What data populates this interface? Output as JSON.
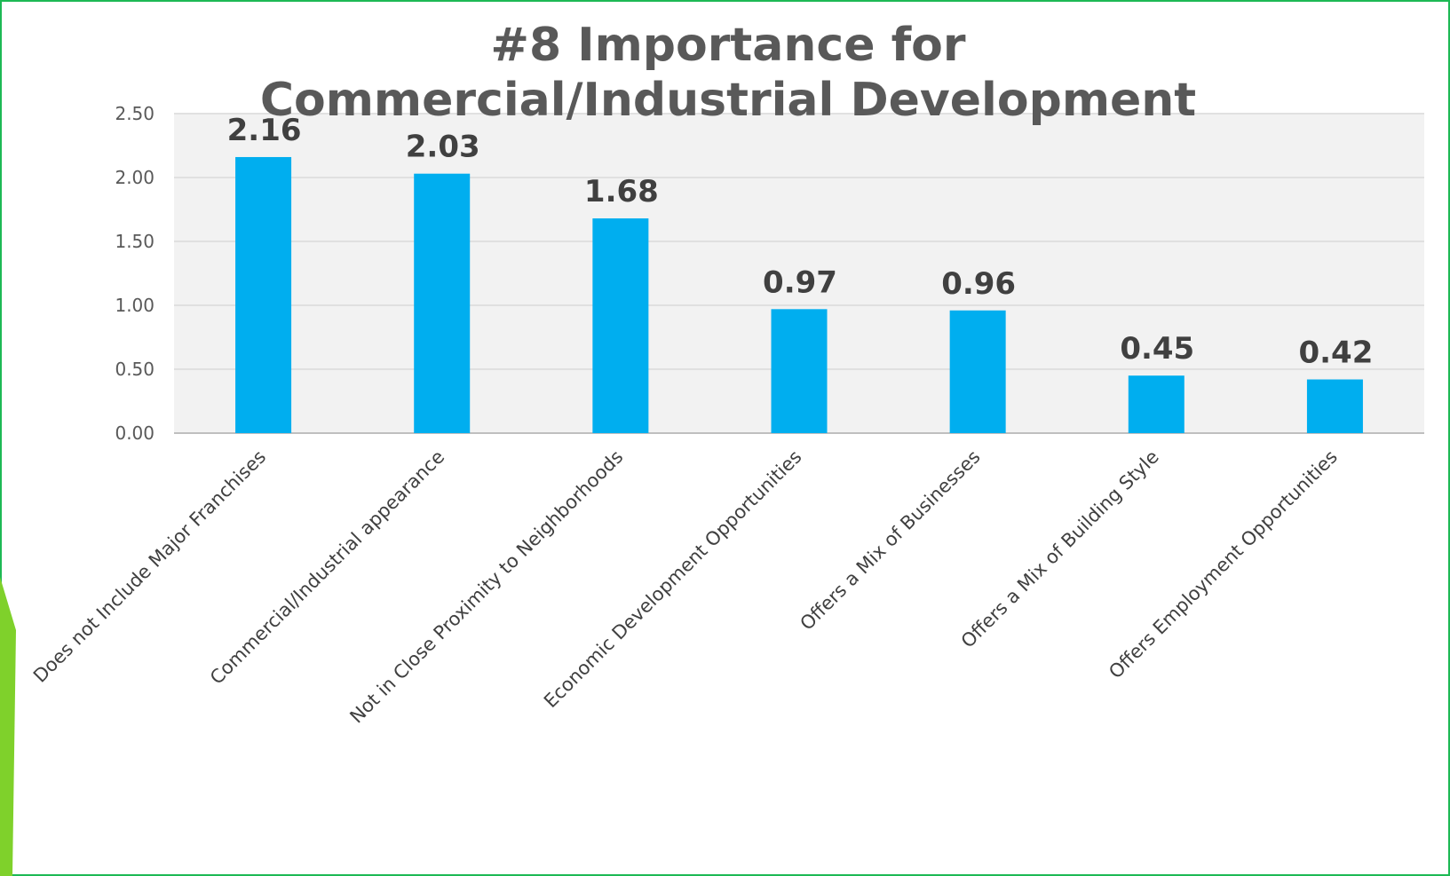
{
  "chart_data": {
    "type": "bar",
    "title": "#8 Importance for Commercial/Industrial Development",
    "categories": [
      "Does not Include Major Franchises",
      "Commercial/Industrial appearance",
      "Not in Close Proximity to Neighborhoods",
      "Economic Development Opportunities",
      "Offers a Mix of Businesses",
      "Offers a Mix of Building Style",
      "Offers Employment Opportunities"
    ],
    "values": [
      2.16,
      2.03,
      1.68,
      0.97,
      0.96,
      0.45,
      0.42
    ],
    "data_labels": [
      "2.16",
      "2.03",
      "1.68",
      "0.97",
      "0.96",
      "0.45",
      "0.42"
    ],
    "y_ticks": [
      "0.00",
      "0.50",
      "1.00",
      "1.50",
      "2.00",
      "2.50"
    ],
    "ylim": [
      0,
      2.5
    ],
    "xlabel": "",
    "ylabel": "",
    "grid": true,
    "legend": "none",
    "colors": {
      "bar": "#00AEEF",
      "plot_background": "#F2F2F2",
      "frame_border": "#1DB954",
      "accent": "#7FD12B"
    }
  }
}
